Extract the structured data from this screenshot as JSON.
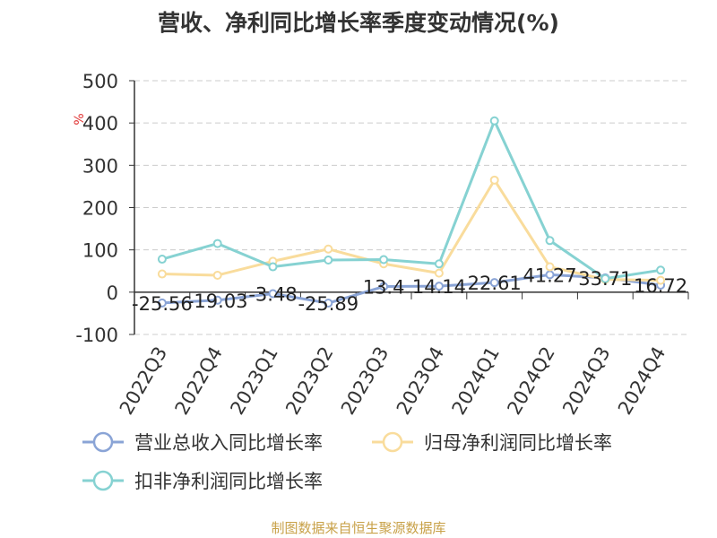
{
  "title": "营收、净利同比增长率季度变动情况(%)",
  "source": "制图数据来自恒生聚源数据库",
  "chart_data": {
    "type": "line",
    "title": "营收、净利同比增长率季度变动情况(%)",
    "ylabel": "%",
    "ylim": [
      -100,
      500
    ],
    "yticks": [
      500,
      400,
      300,
      200,
      100,
      0,
      -100
    ],
    "grid": true,
    "legend_position": "bottom",
    "categories": [
      "2022Q3",
      "2022Q4",
      "2023Q1",
      "2023Q2",
      "2023Q3",
      "2023Q4",
      "2024Q1",
      "2024Q2",
      "2024Q3",
      "2024Q4"
    ],
    "series": [
      {
        "name": "营业总收入同比增长率",
        "color": "#8aa4d6",
        "values": [
          -25.56,
          -19.03,
          -3.48,
          -25.89,
          13.4,
          14.14,
          22.61,
          41.27,
          33.71,
          16.72
        ],
        "labels": [
          "-25.56",
          "-19.03",
          "-3.48",
          "-25.89",
          "13.4",
          "14.14",
          "22.61",
          "41.27",
          "33.71",
          "16.72"
        ]
      },
      {
        "name": "归母净利润同比增长率",
        "color": "#f9dc9c",
        "values": [
          43,
          40,
          73,
          102,
          67,
          45,
          265,
          60,
          30,
          28
        ]
      },
      {
        "name": "扣非净利润同比增长率",
        "color": "#86d2d2",
        "values": [
          78,
          115,
          60,
          76,
          77,
          67,
          405,
          122,
          32,
          52
        ]
      }
    ]
  }
}
